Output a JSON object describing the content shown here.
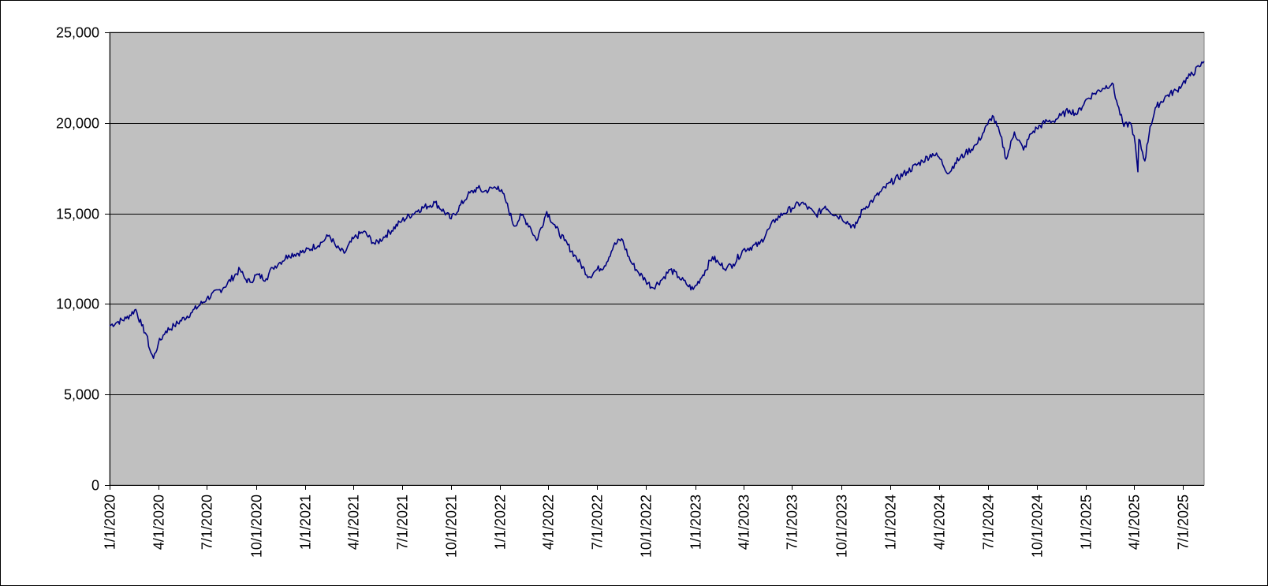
{
  "chart_data": {
    "type": "line",
    "title": "",
    "xlabel": "",
    "ylabel": "",
    "ylim": [
      0,
      25000
    ],
    "y_ticks": [
      0,
      5000,
      10000,
      15000,
      20000,
      25000
    ],
    "y_tick_labels": [
      "0",
      "5,000",
      "10,000",
      "15,000",
      "20,000",
      "25,000"
    ],
    "x_range": [
      "2020-01-01",
      "2025-08-10"
    ],
    "x_ticks": [
      "2020-01-01",
      "2020-04-01",
      "2020-07-01",
      "2020-10-01",
      "2021-01-01",
      "2021-04-01",
      "2021-07-01",
      "2021-10-01",
      "2022-01-01",
      "2022-04-01",
      "2022-07-01",
      "2022-10-01",
      "2023-01-01",
      "2023-04-01",
      "2023-07-01",
      "2023-10-01",
      "2024-01-01",
      "2024-04-01",
      "2024-07-01",
      "2024-10-01",
      "2025-01-01",
      "2025-04-01",
      "2025-07-01"
    ],
    "x_tick_labels": [
      "1/1/2020",
      "4/1/2020",
      "7/1/2020",
      "10/1/2020",
      "1/1/2021",
      "4/1/2021",
      "7/1/2021",
      "10/1/2021",
      "1/1/2022",
      "4/1/2022",
      "7/1/2022",
      "10/1/2022",
      "1/1/2023",
      "4/1/2023",
      "7/1/2023",
      "10/1/2023",
      "1/1/2024",
      "4/1/2024",
      "7/1/2024",
      "10/1/2024",
      "1/1/2025",
      "4/1/2025",
      "7/1/2025"
    ],
    "grid": "horizontal",
    "plot_background": "#c0c0c0",
    "series_color": "#000080",
    "series": [
      {
        "x": [
          "2020-01-01",
          "2020-01-15",
          "2020-02-01",
          "2020-02-19",
          "2020-03-01",
          "2020-03-10",
          "2020-03-16",
          "2020-03-23",
          "2020-04-01",
          "2020-04-15",
          "2020-05-01",
          "2020-06-01",
          "2020-07-01",
          "2020-08-01",
          "2020-09-01",
          "2020-09-10",
          "2020-09-20",
          "2020-10-01",
          "2020-10-20",
          "2020-11-01",
          "2020-11-15",
          "2020-12-01",
          "2021-01-01",
          "2021-02-01",
          "2021-02-15",
          "2021-03-01",
          "2021-03-15",
          "2021-04-01",
          "2021-04-20",
          "2021-05-12",
          "2021-06-01",
          "2021-07-01",
          "2021-08-01",
          "2021-09-01",
          "2021-10-01",
          "2021-11-01",
          "2021-11-20",
          "2021-12-01",
          "2021-12-28",
          "2022-01-10",
          "2022-01-27",
          "2022-02-10",
          "2022-02-25",
          "2022-03-10",
          "2022-03-29",
          "2022-04-15",
          "2022-05-01",
          "2022-05-20",
          "2022-06-16",
          "2022-07-01",
          "2022-07-15",
          "2022-08-01",
          "2022-08-16",
          "2022-09-01",
          "2022-09-15",
          "2022-09-30",
          "2022-10-13",
          "2022-11-01",
          "2022-11-15",
          "2022-12-01",
          "2022-12-15",
          "2022-12-28",
          "2023-01-15",
          "2023-02-02",
          "2023-02-15",
          "2023-03-01",
          "2023-03-13",
          "2023-04-01",
          "2023-05-01",
          "2023-05-20",
          "2023-06-01",
          "2023-06-15",
          "2023-07-01",
          "2023-07-19",
          "2023-08-15",
          "2023-09-01",
          "2023-09-20",
          "2023-10-01",
          "2023-10-26",
          "2023-11-10",
          "2023-12-01",
          "2024-01-01",
          "2024-02-01",
          "2024-03-01",
          "2024-03-20",
          "2024-04-01",
          "2024-04-19",
          "2024-05-01",
          "2024-05-20",
          "2024-06-10",
          "2024-07-01",
          "2024-07-10",
          "2024-07-25",
          "2024-08-05",
          "2024-08-20",
          "2024-09-06",
          "2024-09-20",
          "2024-10-01",
          "2024-10-20",
          "2024-11-01",
          "2024-11-15",
          "2024-12-01",
          "2024-12-16",
          "2024-12-30",
          "2025-01-15",
          "2025-02-01",
          "2025-02-19",
          "2025-03-01",
          "2025-03-13",
          "2025-03-25",
          "2025-04-01",
          "2025-04-08",
          "2025-04-10",
          "2025-04-21",
          "2025-05-01",
          "2025-05-13",
          "2025-06-01",
          "2025-06-20",
          "2025-07-01",
          "2025-07-15",
          "2025-08-01",
          "2025-08-10"
        ],
        "y": [
          8800,
          9000,
          9200,
          9700,
          8800,
          8300,
          7500,
          7000,
          7800,
          8500,
          8800,
          9500,
          10300,
          10900,
          11900,
          11400,
          11200,
          11600,
          11400,
          12000,
          12300,
          12700,
          12900,
          13400,
          13800,
          13100,
          12800,
          13600,
          14000,
          13300,
          13800,
          14600,
          15200,
          15600,
          14700,
          16000,
          16400,
          16200,
          16500,
          15800,
          14300,
          14900,
          14300,
          13500,
          15100,
          14200,
          13500,
          12700,
          11500,
          11900,
          12100,
          13200,
          13600,
          12400,
          11800,
          11300,
          10900,
          11400,
          11900,
          11500,
          11100,
          10800,
          11600,
          12600,
          12200,
          12000,
          12200,
          13000,
          13300,
          14200,
          14700,
          15000,
          15300,
          15600,
          14900,
          15400,
          14900,
          14800,
          14200,
          15200,
          15800,
          16700,
          17300,
          17900,
          18300,
          18100,
          17200,
          17800,
          18300,
          18800,
          19900,
          20400,
          19300,
          18000,
          19500,
          18500,
          19400,
          19700,
          20100,
          20100,
          20400,
          20700,
          20500,
          21200,
          21600,
          21900,
          22200,
          21000,
          19800,
          20000,
          19300,
          17300,
          19100,
          17900,
          19800,
          20900,
          21500,
          21800,
          22200,
          22600,
          23100,
          23400
        ]
      }
    ]
  }
}
